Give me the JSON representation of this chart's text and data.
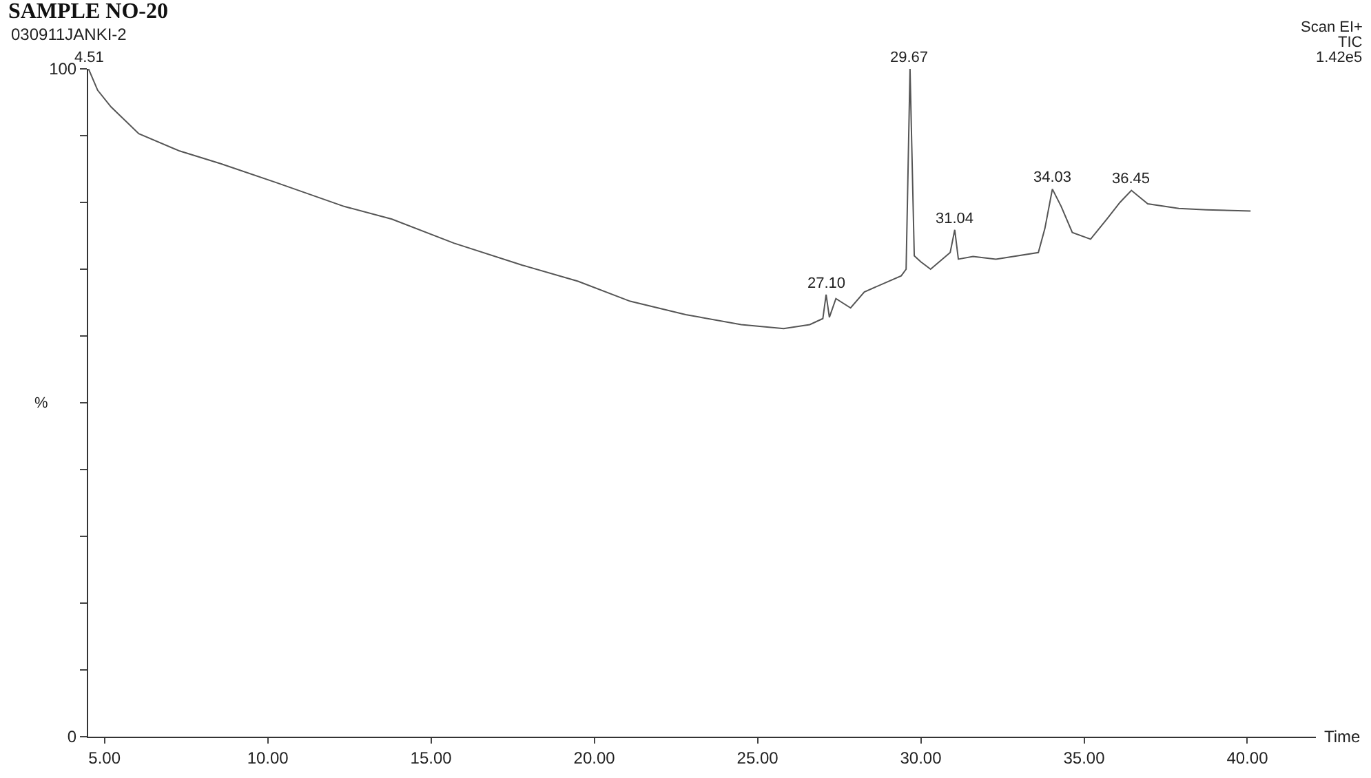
{
  "chart_data": {
    "type": "line",
    "title": "SAMPLE NO-20",
    "subtitle": "030911JANKI-2",
    "xlabel": "Time",
    "ylabel": "%",
    "x": [
      4.51,
      4.79,
      5.2,
      6.05,
      7.3,
      8.56,
      10.24,
      12.34,
      13.8,
      15.7,
      17.8,
      19.5,
      21.1,
      22.8,
      24.5,
      25.8,
      26.6,
      27.0,
      27.1,
      27.2,
      27.4,
      27.85,
      28.27,
      29.4,
      29.55,
      29.67,
      29.8,
      30.0,
      30.3,
      30.9,
      31.04,
      31.15,
      31.6,
      32.3,
      33.6,
      33.8,
      34.03,
      34.3,
      34.64,
      35.2,
      35.7,
      36.1,
      36.45,
      36.95,
      37.9,
      38.75,
      40.1
    ],
    "series": [
      {
        "color": "#555555",
        "values": [
          100,
          96.8,
          94.3,
          90.3,
          87.7,
          85.8,
          83.0,
          79.4,
          77.5,
          73.9,
          70.6,
          68.2,
          65.2,
          63.2,
          61.7,
          61.1,
          61.7,
          62.6,
          66.2,
          62.8,
          65.6,
          64.2,
          66.6,
          69,
          70,
          100,
          72,
          71.1,
          70,
          72.5,
          75.9,
          71.5,
          71.9,
          71.5,
          72.5,
          76.1,
          82.0,
          79.4,
          75.5,
          74.5,
          77.5,
          80.0,
          81.8,
          79.8,
          79.1,
          78.9,
          78.7
        ]
      }
    ],
    "xlim": [
      4.5,
      42.1
    ],
    "ylim": [
      0,
      100
    ],
    "xticks": [
      {
        "value": 5,
        "label": "5.00"
      },
      {
        "value": 10,
        "label": "10.00"
      },
      {
        "value": 15,
        "label": "15.00"
      },
      {
        "value": 20,
        "label": "20.00"
      },
      {
        "value": 25,
        "label": "25.00"
      },
      {
        "value": 30,
        "label": "30.00"
      },
      {
        "value": 35,
        "label": "35.00"
      },
      {
        "value": 40,
        "label": "40.00"
      }
    ],
    "yticks": [
      0,
      {
        "value": 10,
        "label": null
      },
      {
        "value": 20,
        "label": null
      },
      {
        "value": 30,
        "label": null
      },
      {
        "value": 40,
        "label": null
      },
      {
        "value": 50,
        "label": null
      },
      {
        "value": 60,
        "label": null
      },
      {
        "value": 70,
        "label": null
      },
      {
        "value": 80,
        "label": null
      },
      {
        "value": 90,
        "label": null
      },
      100
    ],
    "annotations": [
      "Scan EI+",
      "TIC",
      "1.42e5",
      {
        "text": "4.51",
        "x": 4.51,
        "y": 100
      },
      {
        "text": "27.10",
        "x": 27.1,
        "y": 66.2
      },
      {
        "text": "29.67",
        "x": 29.67,
        "y": 100
      },
      {
        "text": "31.04",
        "x": 31.04,
        "y": 75.9
      },
      {
        "text": "34.03",
        "x": 34.03,
        "y": 82.0
      },
      {
        "text": "36.45",
        "x": 36.45,
        "y": 81.8
      }
    ]
  }
}
